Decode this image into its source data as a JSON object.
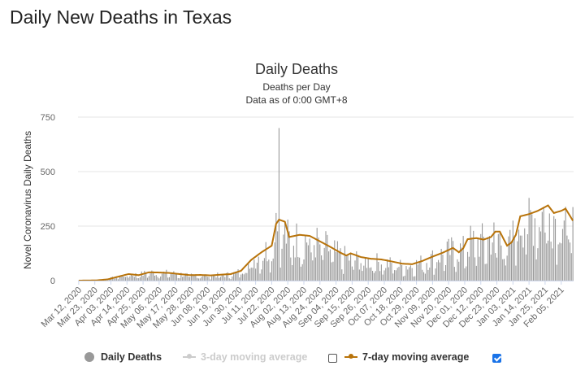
{
  "page_title": "Daily New Deaths in Texas",
  "chart_data": {
    "type": "bar",
    "title": "Daily Deaths",
    "subtitle": "Deaths per Day",
    "subtitle2": "Data as of 0:00 GMT+8",
    "ylabel": "Novel Coronavirus Daily Deaths",
    "xlabel": "",
    "ylim": [
      0,
      750
    ],
    "yticks": [
      0,
      250,
      500,
      750
    ],
    "start_date": "2020-03-12",
    "end_date": "2021-02-13",
    "x_tick_labels": [
      "Mar 12, 2020",
      "Mar 23, 2020",
      "Apr 03, 2020",
      "Apr 14, 2020",
      "Apr 25, 2020",
      "May 06, 2020",
      "May 17, 2020",
      "May 28, 2020",
      "Jun 08, 2020",
      "Jun 19, 2020",
      "Jun 30, 2020",
      "Jul 11, 2020",
      "Jul 22, 2020",
      "Aug 02, 2020",
      "Aug 13, 2020",
      "Aug 24, 2020",
      "Sep 04, 2020",
      "Sep 15, 2020",
      "Sep 26, 2020",
      "Oct 07, 2020",
      "Oct 18, 2020",
      "Oct 29, 2020",
      "Nov 09, 2020",
      "Nov 20, 2020",
      "Dec 01, 2020",
      "Dec 12, 2020",
      "Dec 23, 2020",
      "Jan 03, 2021",
      "Jan 14, 2021",
      "Jan 25, 2021",
      "Feb 05, 2021"
    ],
    "daily_anchors": [
      [
        "2020-03-12",
        0
      ],
      [
        "2020-03-24",
        1
      ],
      [
        "2020-04-01",
        8
      ],
      [
        "2020-04-08",
        20
      ],
      [
        "2020-04-15",
        30
      ],
      [
        "2020-04-22",
        28
      ],
      [
        "2020-04-29",
        40
      ],
      [
        "2020-05-06",
        38
      ],
      [
        "2020-05-13",
        36
      ],
      [
        "2020-05-20",
        32
      ],
      [
        "2020-05-27",
        25
      ],
      [
        "2020-06-03",
        26
      ],
      [
        "2020-06-10",
        25
      ],
      [
        "2020-06-17",
        27
      ],
      [
        "2020-06-24",
        30
      ],
      [
        "2020-07-01",
        45
      ],
      [
        "2020-07-08",
        95
      ],
      [
        "2020-07-15",
        130
      ],
      [
        "2020-07-22",
        170
      ],
      [
        "2020-07-27",
        270
      ],
      [
        "2020-08-03",
        200
      ],
      [
        "2020-08-10",
        205
      ],
      [
        "2020-08-17",
        200
      ],
      [
        "2020-08-24",
        180
      ],
      [
        "2020-08-31",
        155
      ],
      [
        "2020-09-07",
        120
      ],
      [
        "2020-09-14",
        110
      ],
      [
        "2020-09-21",
        100
      ],
      [
        "2020-09-28",
        95
      ],
      [
        "2020-10-05",
        90
      ],
      [
        "2020-10-12",
        80
      ],
      [
        "2020-10-19",
        72
      ],
      [
        "2020-10-26",
        75
      ],
      [
        "2020-11-02",
        90
      ],
      [
        "2020-11-09",
        110
      ],
      [
        "2020-11-16",
        130
      ],
      [
        "2020-11-23",
        150
      ],
      [
        "2020-11-30",
        150
      ],
      [
        "2020-12-05",
        190
      ],
      [
        "2020-12-12",
        190
      ],
      [
        "2020-12-19",
        210
      ],
      [
        "2020-12-24",
        225
      ],
      [
        "2020-12-28",
        170
      ],
      [
        "2021-01-01",
        175
      ],
      [
        "2021-01-07",
        300
      ],
      [
        "2021-01-14",
        310
      ],
      [
        "2021-01-21",
        330
      ],
      [
        "2021-01-27",
        340
      ],
      [
        "2021-02-01",
        320
      ],
      [
        "2021-02-07",
        320
      ],
      [
        "2021-02-13",
        270
      ]
    ],
    "daily_spikes": [
      [
        "2020-07-27",
        700
      ],
      [
        "2020-07-25",
        310
      ]
    ],
    "series": [
      {
        "name": "Daily Deaths",
        "color": "#999999",
        "visible": true
      },
      {
        "name": "3-day moving average",
        "color": "#cccccc",
        "visible": false
      },
      {
        "name": "7-day moving average",
        "color": "#b8730a",
        "visible": true
      }
    ],
    "ma7_anchors": [
      [
        "2020-03-12",
        0
      ],
      [
        "2020-03-24",
        1
      ],
      [
        "2020-04-01",
        6
      ],
      [
        "2020-04-08",
        18
      ],
      [
        "2020-04-15",
        30
      ],
      [
        "2020-04-22",
        25
      ],
      [
        "2020-04-29",
        38
      ],
      [
        "2020-05-06",
        37
      ],
      [
        "2020-05-13",
        35
      ],
      [
        "2020-05-20",
        30
      ],
      [
        "2020-05-27",
        25
      ],
      [
        "2020-06-03",
        26
      ],
      [
        "2020-06-10",
        24
      ],
      [
        "2020-06-17",
        27
      ],
      [
        "2020-06-24",
        30
      ],
      [
        "2020-07-01",
        45
      ],
      [
        "2020-07-08",
        95
      ],
      [
        "2020-07-15",
        130
      ],
      [
        "2020-07-22",
        160
      ],
      [
        "2020-07-25",
        260
      ],
      [
        "2020-07-27",
        280
      ],
      [
        "2020-07-31",
        270
      ],
      [
        "2020-08-03",
        200
      ],
      [
        "2020-08-10",
        210
      ],
      [
        "2020-08-17",
        205
      ],
      [
        "2020-08-24",
        180
      ],
      [
        "2020-08-31",
        155
      ],
      [
        "2020-09-07",
        128
      ],
      [
        "2020-09-11",
        115
      ],
      [
        "2020-09-14",
        125
      ],
      [
        "2020-09-21",
        108
      ],
      [
        "2020-09-28",
        100
      ],
      [
        "2020-10-05",
        97
      ],
      [
        "2020-10-12",
        88
      ],
      [
        "2020-10-19",
        78
      ],
      [
        "2020-10-26",
        75
      ],
      [
        "2020-11-02",
        90
      ],
      [
        "2020-11-09",
        110
      ],
      [
        "2020-11-16",
        128
      ],
      [
        "2020-11-23",
        150
      ],
      [
        "2020-11-27",
        130
      ],
      [
        "2020-11-30",
        148
      ],
      [
        "2020-12-03",
        190
      ],
      [
        "2020-12-09",
        195
      ],
      [
        "2020-12-14",
        188
      ],
      [
        "2020-12-19",
        200
      ],
      [
        "2020-12-22",
        225
      ],
      [
        "2020-12-25",
        225
      ],
      [
        "2020-12-30",
        160
      ],
      [
        "2021-01-02",
        175
      ],
      [
        "2021-01-05",
        210
      ],
      [
        "2021-01-08",
        295
      ],
      [
        "2021-01-14",
        305
      ],
      [
        "2021-01-20",
        320
      ],
      [
        "2021-01-27",
        345
      ],
      [
        "2021-01-31",
        310
      ],
      [
        "2021-02-05",
        320
      ],
      [
        "2021-02-08",
        330
      ],
      [
        "2021-02-13",
        275
      ]
    ]
  },
  "legend": {
    "daily_label": "Daily Deaths",
    "ma3_label": "3-day moving average",
    "ma7_label": "7-day moving average",
    "ma3_checked": false,
    "ma7_checked": true
  },
  "colors": {
    "bar": "#999999",
    "ma7": "#b8730a",
    "ma3": "#cccccc",
    "checkbox": "#1a73e8"
  }
}
